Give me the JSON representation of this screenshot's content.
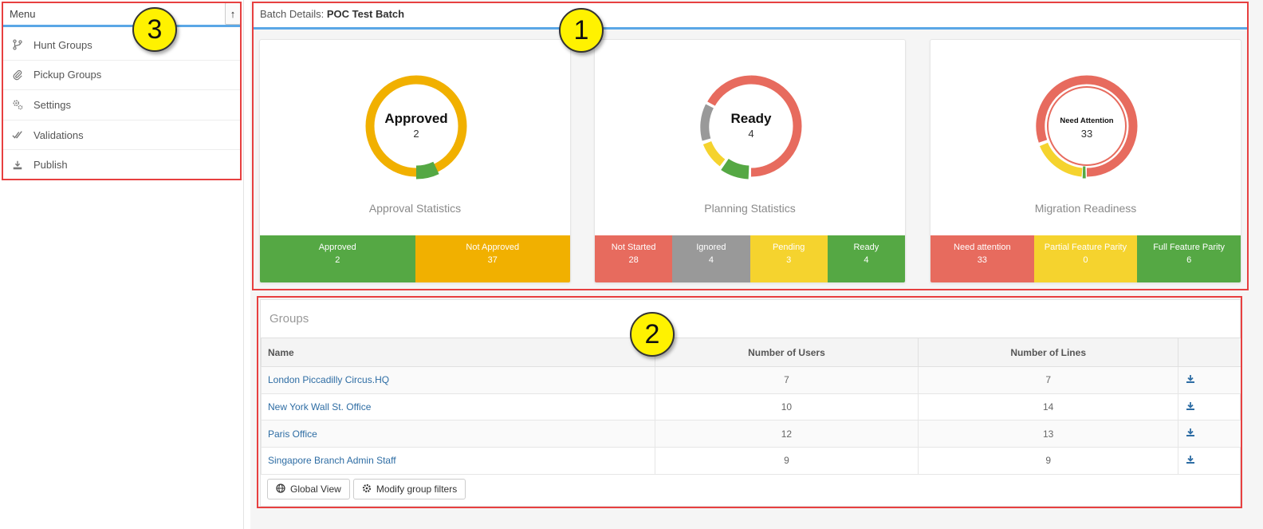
{
  "sidebar": {
    "title": "Menu",
    "collapse_icon": "arrow-up-icon",
    "items": [
      {
        "label": "Hunt Groups",
        "icon": "branch-icon"
      },
      {
        "label": "Pickup Groups",
        "icon": "paperclip-icon"
      },
      {
        "label": "Settings",
        "icon": "gears-icon"
      },
      {
        "label": "Validations",
        "icon": "double-check-icon"
      },
      {
        "label": "Publish",
        "icon": "download-tray-icon"
      }
    ]
  },
  "header": {
    "prefix": "Batch Details:",
    "batch_name": "POC Test Batch"
  },
  "cards": [
    {
      "center_title": "Approved",
      "center_value": "2",
      "label": "Approval Statistics",
      "stats": [
        {
          "label": "Approved",
          "value": "2",
          "color": "#55a844"
        },
        {
          "label": "Not Approved",
          "value": "37",
          "color": "#f1b000"
        }
      ]
    },
    {
      "center_title": "Ready",
      "center_value": "4",
      "label": "Planning Statistics",
      "stats": [
        {
          "label": "Not Started",
          "value": "28",
          "color": "#e76b5e"
        },
        {
          "label": "Ignored",
          "value": "4",
          "color": "#999999"
        },
        {
          "label": "Pending",
          "value": "3",
          "color": "#f5d32e"
        },
        {
          "label": "Ready",
          "value": "4",
          "color": "#55a844"
        }
      ]
    },
    {
      "center_title": "Need Attention",
      "center_value": "33",
      "label": "Migration Readiness",
      "stats": [
        {
          "label": "Need attention",
          "value": "33",
          "color": "#e76b5e"
        },
        {
          "label": "Partial Feature Parity",
          "value": "0",
          "color": "#f5d32e"
        },
        {
          "label": "Full Feature Parity",
          "value": "6",
          "color": "#55a844"
        }
      ]
    }
  ],
  "groups": {
    "title": "Groups",
    "columns": [
      "Name",
      "Number of Users",
      "Number of Lines",
      ""
    ],
    "rows": [
      {
        "name": "London Piccadilly Circus.HQ",
        "users": "7",
        "lines": "7"
      },
      {
        "name": "New York Wall St. Office",
        "users": "10",
        "lines": "14"
      },
      {
        "name": "Paris Office",
        "users": "12",
        "lines": "13"
      },
      {
        "name": "Singapore Branch Admin Staff",
        "users": "9",
        "lines": "9"
      }
    ],
    "buttons": {
      "global_view": "Global View",
      "modify_filters": "Modify group filters"
    }
  },
  "annotations": [
    "1",
    "2",
    "3"
  ]
}
